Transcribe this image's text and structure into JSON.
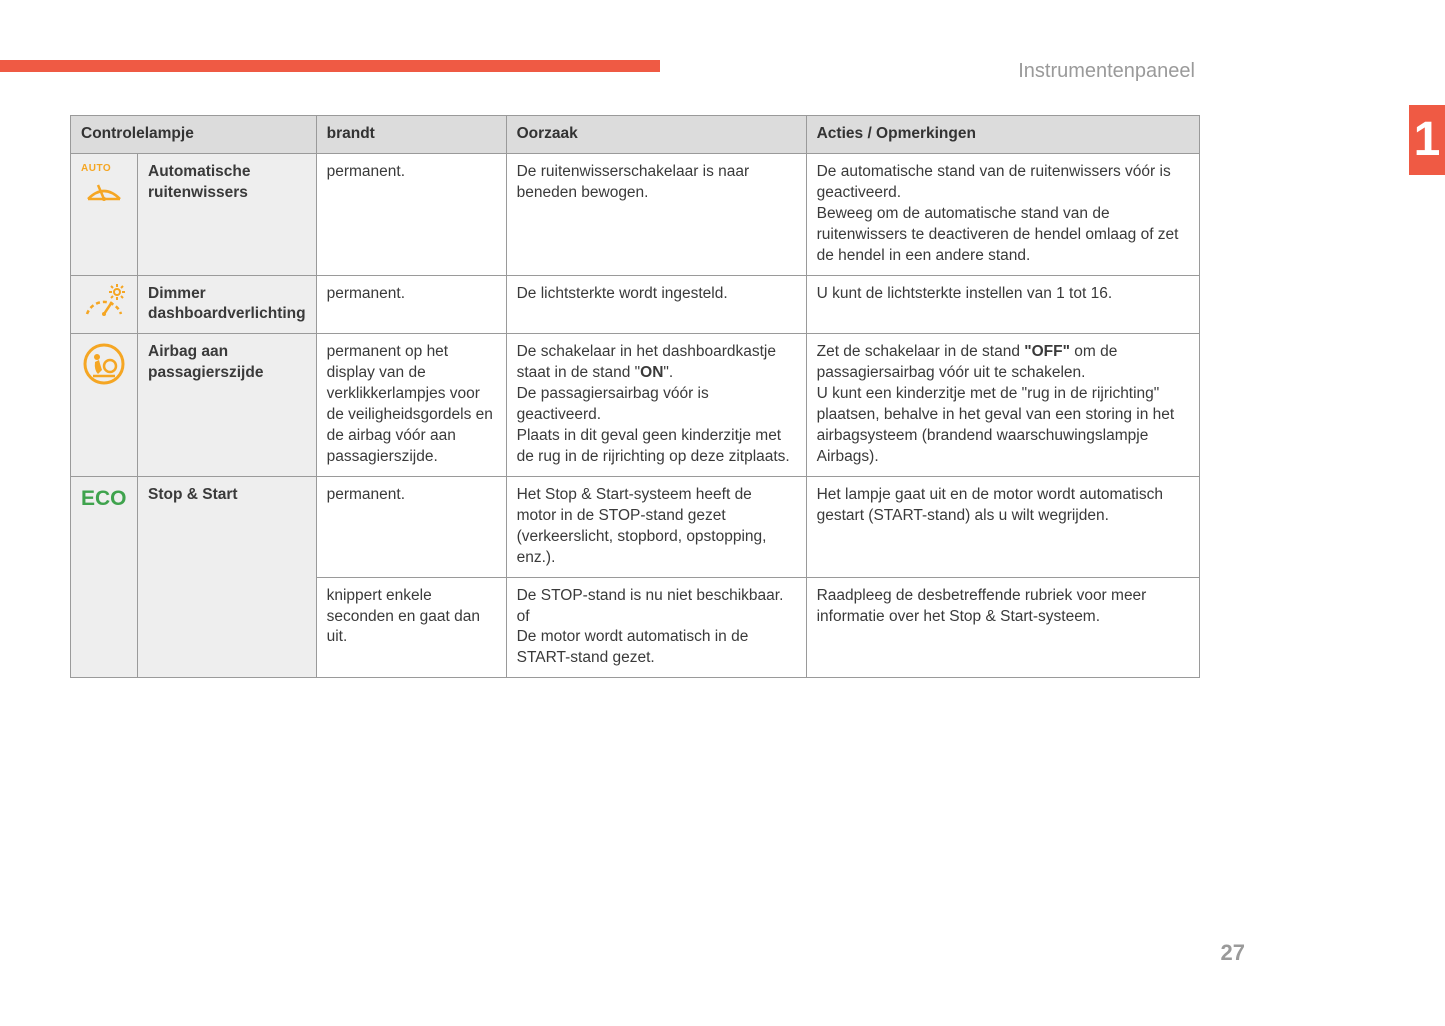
{
  "page": {
    "section_title": "Instrumentenpaneel",
    "chapter_number": "1",
    "page_number": "27",
    "accent_color": "#ef5a44",
    "icon_color": "#f5a623",
    "eco_color": "#3fa34d"
  },
  "table": {
    "columns": [
      "Controlelampje",
      "brandt",
      "Oorzaak",
      "Acties / Opmerkingen"
    ],
    "rows": [
      {
        "icon": "auto-wipers",
        "label": "Automatische ruitenwissers",
        "cells": [
          {
            "brandt": "permanent.",
            "oorzaak": "De ruitenwisserschakelaar is naar beneden bewogen.",
            "acties": "De automatische stand van de ruitenwissers vóór is geactiveerd.<br>Beweeg om de automatische stand van de ruitenwissers te deactiveren de hendel omlaag of zet de hendel in een andere stand."
          }
        ]
      },
      {
        "icon": "dimmer",
        "label": "Dimmer dashboardverlichting",
        "cells": [
          {
            "brandt": "permanent.",
            "oorzaak": "De lichtsterkte wordt ingesteld.",
            "acties": "U kunt de lichtsterkte instellen van 1 tot 16."
          }
        ]
      },
      {
        "icon": "passenger-airbag",
        "label": "Airbag aan passagierszijde",
        "cells": [
          {
            "brandt": "permanent op het display van de verklikkerlampjes voor de veiligheidsgordels en de airbag vóór aan passagierszijde.",
            "oorzaak": "De schakelaar in het dashboardkastje staat in de stand \"<b>ON</b>\".<br>De passagiersairbag vóór is geactiveerd.<br>Plaats in dit geval geen kinderzitje met de rug in de rijrichting op deze zitplaats.",
            "acties": "Zet de schakelaar in de stand <b>\"OFF\"</b> om de passagiersairbag vóór uit te schakelen.<br>U kunt een kinderzitje met de \"rug in de rijrichting\" plaatsen, behalve in het geval van een storing in het airbagsysteem (brandend waarschuwingslampje Airbags)."
          }
        ]
      },
      {
        "icon": "eco",
        "label": "Stop & Start",
        "cells": [
          {
            "brandt": "permanent.",
            "oorzaak": "Het Stop & Start-systeem heeft de motor in de STOP-stand gezet (verkeerslicht, stopbord, opstopping, enz.).",
            "acties": "Het lampje gaat uit en de motor wordt automatisch gestart (START-stand) als u wilt wegrijden."
          },
          {
            "brandt": "knippert enkele seconden en gaat dan uit.",
            "oorzaak": "De STOP-stand is nu niet beschikbaar.<br>of<br>De motor wordt automatisch in de START-stand gezet.",
            "acties": "Raadpleeg de desbetreffende rubriek voor meer informatie over het Stop & Start-systeem."
          }
        ]
      }
    ]
  }
}
